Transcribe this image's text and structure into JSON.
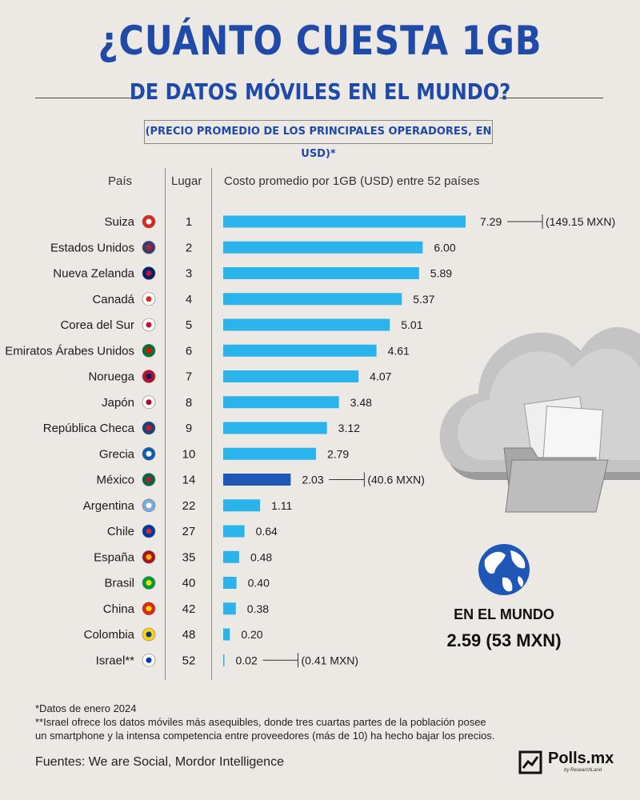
{
  "header": {
    "title_line1": "¿CUÁNTO CUESTA 1GB",
    "title_line2": "DE DATOS MÓVILES EN EL MUNDO?",
    "subtitle": "(PRECIO PROMEDIO DE LOS PRINCIPALES OPERADORES, EN USD)*"
  },
  "columns": {
    "country": "País",
    "rank": "Lugar",
    "cost": "Costo promedio por 1GB (USD) entre 52 países"
  },
  "chart_data": {
    "type": "bar",
    "orientation": "horizontal",
    "title": "¿CUÁNTO CUESTA 1GB DE DATOS MÓVILES EN EL MUNDO?",
    "categories": [
      "Suiza",
      "Estados Unidos",
      "Nueva Zelanda",
      "Canadá",
      "Corea del Sur",
      "Emiratos Árabes Unidos",
      "Noruega",
      "Japón",
      "República Checa",
      "Grecia",
      "México",
      "Argentina",
      "Chile",
      "España",
      "Brasil",
      "China",
      "Colombia",
      "Israel**"
    ],
    "ranks": [
      "1",
      "2",
      "3",
      "4",
      "5",
      "6",
      "7",
      "8",
      "9",
      "10",
      "14",
      "22",
      "27",
      "35",
      "40",
      "42",
      "48",
      "52"
    ],
    "values": [
      7.29,
      6.0,
      5.89,
      5.37,
      5.01,
      4.61,
      4.07,
      3.48,
      3.12,
      2.79,
      2.03,
      1.11,
      0.64,
      0.48,
      0.4,
      0.38,
      0.2,
      0.02
    ],
    "value_labels": [
      "7.29",
      "6.00",
      "5.89",
      "5.37",
      "5.01",
      "4.61",
      "4.07",
      "3.48",
      "3.12",
      "2.79",
      "2.03",
      "1.11",
      "0.64",
      "0.48",
      "0.40",
      "0.38",
      "0.20",
      "0.02"
    ],
    "annotations": [
      {
        "category": "Suiza",
        "text": "(149.15 MXN)"
      },
      {
        "category": "México",
        "text": "(40.6 MXN)"
      },
      {
        "category": "Israel**",
        "text": "(0.41 MXN)"
      }
    ],
    "highlight_category": "México",
    "xlim": [
      0,
      7.29
    ],
    "grid": false,
    "colors": {
      "bar": "#2bb3ec",
      "highlight": "#1f57b8"
    }
  },
  "world": {
    "label": "EN EL MUNDO",
    "value": "2.59 (53 MXN)"
  },
  "footnotes": {
    "note1": "*Datos de enero 2024",
    "note2_line1": "**Israel ofrece los datos móviles más asequibles, donde tres cuartas partes de la población posee",
    "note2_line2": "un smartphone y la intensa competencia entre proveedores (más de 10) ha hecho bajar los precios.",
    "sources": "Fuentes: We are Social, Mordor Intelligence"
  },
  "brand": {
    "name": "Polls.mx",
    "sub": "by ResearchLand"
  },
  "icons": {
    "cloud": "cloud-folder-icon",
    "globe": "globe-icon"
  }
}
